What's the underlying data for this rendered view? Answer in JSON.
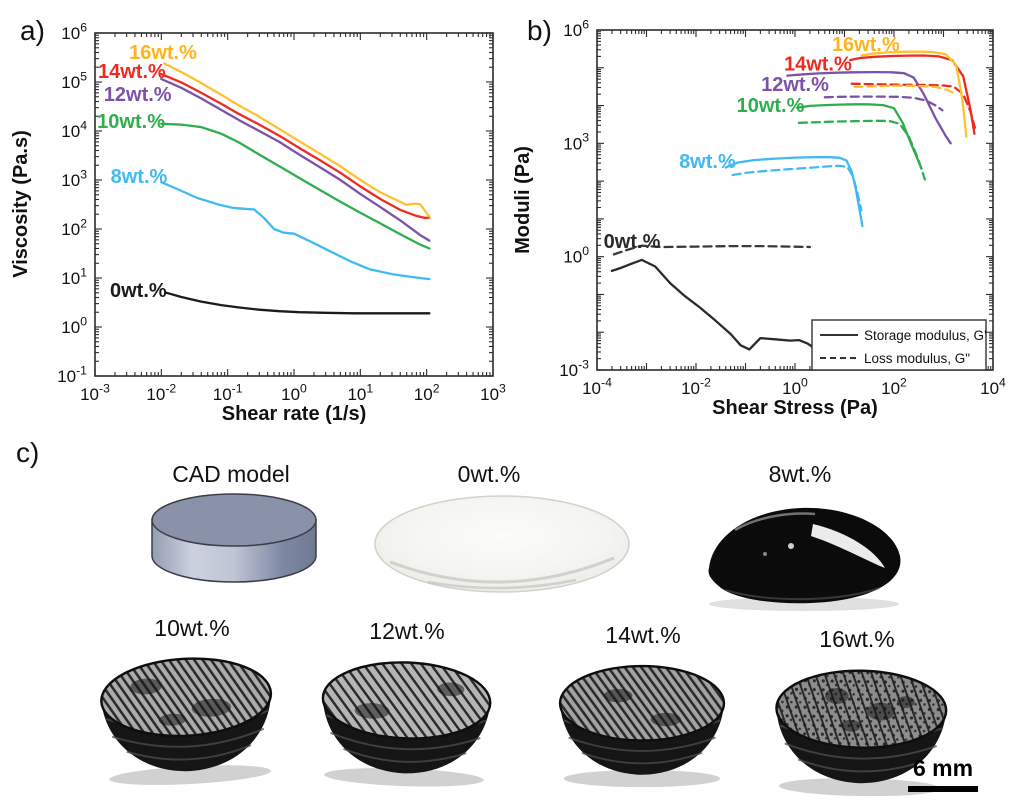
{
  "figure": {
    "panel_a_label": "a)",
    "panel_b_label": "b)",
    "panel_c_label": "c)"
  },
  "chart_data": [
    {
      "id": "a",
      "type": "line",
      "title": "",
      "xlabel": "Shear rate (1/s)",
      "ylabel": "Viscosity (Pa.s)",
      "x_scale": "log",
      "y_scale": "log",
      "xlim": [
        0.001,
        1000
      ],
      "ylim": [
        0.1,
        1000000
      ],
      "x_label_anchor": -3,
      "x_label_step": 1,
      "y_label_anchor": -1,
      "y_label_step": 1,
      "grid": false,
      "series": [
        {
          "name": "0wt.%",
          "color": "#1b1b1b",
          "dash": false,
          "x": [
            0.012,
            0.02,
            0.04,
            0.08,
            0.15,
            0.3,
            0.6,
            1.2,
            3,
            8,
            20,
            50,
            110
          ],
          "y": [
            5.0,
            4.1,
            3.3,
            2.8,
            2.5,
            2.25,
            2.1,
            2.0,
            1.95,
            1.9,
            1.9,
            1.9,
            1.9
          ]
        },
        {
          "name": "8wt.%",
          "color": "#41B9F2",
          "dash": false,
          "x": [
            0.01,
            0.018,
            0.035,
            0.07,
            0.12,
            0.18,
            0.25,
            0.35,
            0.5,
            0.7,
            1,
            1.8,
            3.5,
            7,
            14,
            30,
            60,
            110
          ],
          "y": [
            900,
            640,
            430,
            320,
            270,
            258,
            250,
            170,
            100,
            84,
            80,
            55,
            35,
            22,
            15,
            12,
            10.5,
            9.5
          ]
        },
        {
          "name": "10wt.%",
          "color": "#2FAE4F",
          "dash": false,
          "x": [
            0.01,
            0.02,
            0.04,
            0.08,
            0.15,
            0.3,
            0.6,
            1.2,
            2.5,
            5,
            10,
            20,
            40,
            80,
            110
          ],
          "y": [
            14000,
            13500,
            12000,
            8800,
            5800,
            3300,
            1900,
            1100,
            620,
            360,
            215,
            130,
            78,
            48,
            40
          ]
        },
        {
          "name": "12wt.%",
          "color": "#7B52A8",
          "dash": false,
          "x": [
            0.01,
            0.02,
            0.04,
            0.08,
            0.15,
            0.3,
            0.6,
            1.2,
            2.5,
            5,
            10,
            20,
            40,
            80,
            110
          ],
          "y": [
            115000,
            76000,
            46000,
            27000,
            16500,
            10000,
            6000,
            3300,
            1800,
            1000,
            520,
            280,
            150,
            75,
            58
          ]
        },
        {
          "name": "14wt.%",
          "color": "#EE2A21",
          "dash": false,
          "x": [
            0.01,
            0.02,
            0.04,
            0.08,
            0.15,
            0.3,
            0.6,
            1.2,
            2.5,
            5,
            10,
            20,
            40,
            70,
            95,
            110
          ],
          "y": [
            145000,
            98000,
            60000,
            36000,
            22000,
            13500,
            8000,
            4500,
            2500,
            1400,
            740,
            410,
            245,
            185,
            168,
            172
          ]
        },
        {
          "name": "16wt.%",
          "color": "#FFC22E",
          "dash": false,
          "x": [
            0.011,
            0.02,
            0.04,
            0.08,
            0.15,
            0.3,
            0.6,
            1.2,
            2.5,
            5,
            10,
            20,
            35,
            50,
            65,
            80,
            95,
            110
          ],
          "y": [
            240000,
            160000,
            95000,
            55000,
            33000,
            19500,
            11000,
            6200,
            3400,
            1900,
            1000,
            560,
            390,
            310,
            330,
            320,
            230,
            180
          ]
        }
      ],
      "annotations": [
        {
          "text": "16wt.%",
          "color": "#FFB41E",
          "x": 0.0106,
          "y": 410000
        },
        {
          "text": "14wt.%",
          "color": "#EE2A21",
          "x": 0.0036,
          "y": 167000
        },
        {
          "text": "12wt.%",
          "color": "#7B52A8",
          "x": 0.0044,
          "y": 57000
        },
        {
          "text": "10wt.%",
          "color": "#2FAE4F",
          "x": 0.0035,
          "y": 16000
        },
        {
          "text": "8wt.%",
          "color": "#41B9F2",
          "x": 0.0046,
          "y": 1200
        },
        {
          "text": "0wt.%",
          "color": "#1b1b1b",
          "x": 0.0045,
          "y": 5.7
        }
      ]
    },
    {
      "id": "b",
      "type": "line",
      "title": "",
      "xlabel": "Shear Stress (Pa)",
      "ylabel": "Moduli (Pa)",
      "x_scale": "log",
      "y_scale": "log",
      "xlim": [
        0.0001,
        10000
      ],
      "ylim": [
        0.001,
        1000000
      ],
      "x_label_anchor": -4,
      "x_label_step": 2,
      "y_label_anchor": -3,
      "y_label_step": 3,
      "grid": false,
      "legend_items": [
        {
          "label": "Storage modulus, G'",
          "dash": false
        },
        {
          "label": "Loss modulus, G\"",
          "dash": true
        }
      ],
      "series": [
        {
          "name": "0wt.% G\"",
          "color": "#3a3a3a",
          "dash": true,
          "x": [
            0.00022,
            0.0004,
            0.0008,
            0.002,
            0.01,
            0.05,
            0.2,
            0.8,
            2
          ],
          "y": [
            1.15,
            1.5,
            1.95,
            1.8,
            1.85,
            1.9,
            1.9,
            1.85,
            1.8
          ]
        },
        {
          "name": "0wt.% G'",
          "color": "#2a2a2a",
          "dash": false,
          "x": [
            0.0002,
            0.0003,
            0.0005,
            0.0008,
            0.0015,
            0.003,
            0.006,
            0.012,
            0.025,
            0.05,
            0.08,
            0.12,
            0.2,
            0.4,
            0.8,
            1.2,
            1.8,
            2.2
          ],
          "y": [
            0.42,
            0.5,
            0.65,
            0.82,
            0.55,
            0.2,
            0.09,
            0.045,
            0.02,
            0.009,
            0.0045,
            0.0035,
            0.007,
            0.0065,
            0.006,
            0.0062,
            0.005,
            0.0042
          ]
        },
        {
          "name": "8wt.% G\"",
          "color": "#41B9F2",
          "dash": true,
          "x": [
            0.055,
            0.1,
            0.25,
            0.7,
            2,
            4.5,
            8,
            11.5,
            15,
            18.5,
            22
          ],
          "y": [
            145,
            165,
            185,
            205,
            225,
            245,
            255,
            235,
            130,
            45,
            17
          ]
        },
        {
          "name": "8wt.% G'",
          "color": "#41B9F2",
          "dash": false,
          "x": [
            0.04,
            0.07,
            0.15,
            0.4,
            1,
            2.5,
            5,
            8,
            11,
            14,
            17,
            20,
            23
          ],
          "y": [
            230,
            310,
            360,
            395,
            420,
            430,
            430,
            415,
            350,
            180,
            60,
            18,
            6.5
          ]
        },
        {
          "name": "10wt.% G\"",
          "color": "#2FAE4F",
          "dash": true,
          "x": [
            1.2,
            2.5,
            6,
            15,
            40,
            80,
            130,
            200,
            300,
            420
          ],
          "y": [
            3500,
            3600,
            3750,
            3850,
            3950,
            3900,
            3300,
            1500,
            420,
            110
          ]
        },
        {
          "name": "10wt.% G'",
          "color": "#2FAE4F",
          "dash": false,
          "x": [
            1.1,
            2,
            4,
            8,
            15,
            30,
            60,
            100,
            150,
            220,
            300,
            360
          ],
          "y": [
            8800,
            9800,
            10300,
            10600,
            10800,
            10800,
            10300,
            8500,
            3500,
            1000,
            380,
            215
          ]
        },
        {
          "name": "12wt.% G\"",
          "color": "#7B52A8",
          "dash": true,
          "x": [
            4,
            8,
            20,
            50,
            120,
            250,
            450,
            700,
            950
          ],
          "y": [
            16500,
            17000,
            17300,
            17300,
            17000,
            16000,
            13500,
            10000,
            7500
          ]
        },
        {
          "name": "12wt.% G'",
          "color": "#7B52A8",
          "dash": false,
          "x": [
            0.7,
            1.5,
            3,
            7,
            15,
            40,
            90,
            160,
            250,
            400,
            700,
            1100,
            1400
          ],
          "y": [
            62000,
            67000,
            71000,
            74000,
            76000,
            77000,
            76000,
            72000,
            55000,
            20000,
            4500,
            1600,
            1000
          ]
        },
        {
          "name": "14wt.% G\"",
          "color": "#EE2A21",
          "dash": true,
          "x": [
            14,
            30,
            80,
            200,
            500,
            1000,
            1600,
            2500,
            3500,
            4300
          ],
          "y": [
            38000,
            37000,
            36000,
            35500,
            35000,
            34000,
            32000,
            20000,
            7000,
            2600
          ]
        },
        {
          "name": "16wt.% G\"",
          "color": "#FFC22E",
          "dash": true,
          "x": [
            16,
            30,
            70,
            150,
            350,
            700,
            1200,
            1800
          ],
          "y": [
            31000,
            32000,
            33000,
            33500,
            33000,
            31000,
            26000,
            20000
          ]
        },
        {
          "name": "14wt.% G'",
          "color": "#EE2A21",
          "dash": false,
          "x": [
            13,
            20,
            40,
            90,
            200,
            400,
            800,
            1500,
            2500,
            3500,
            4200
          ],
          "y": [
            160000,
            180000,
            195000,
            205000,
            210000,
            211000,
            200000,
            160000,
            60000,
            8000,
            1800
          ]
        },
        {
          "name": "16wt.% G'",
          "color": "#FFC22E",
          "dash": false,
          "x": [
            22,
            35,
            70,
            150,
            300,
            600,
            1100,
            1800,
            2400,
            2900
          ],
          "y": [
            210000,
            235000,
            255000,
            265000,
            268000,
            262000,
            230000,
            120000,
            15000,
            1500
          ]
        }
      ],
      "annotations": [
        {
          "text": "16wt.%",
          "color": "#FFB41E",
          "x": 27,
          "y": 420000
        },
        {
          "text": "14wt.%",
          "color": "#EE2A21",
          "x": 2.9,
          "y": 130000
        },
        {
          "text": "12wt.%",
          "color": "#7B52A8",
          "x": 1.0,
          "y": 37000
        },
        {
          "text": "10wt.%",
          "color": "#2FAE4F",
          "x": 0.32,
          "y": 10500
        },
        {
          "text": "8wt.%",
          "color": "#41B9F2",
          "x": 0.017,
          "y": 340
        },
        {
          "text": "0wt.%",
          "color": "#2a2a2a",
          "x": 0.00051,
          "y": 2.6
        }
      ]
    }
  ],
  "panel_c": {
    "items": [
      {
        "id": "cad",
        "label": "CAD model",
        "type": "cad-render"
      },
      {
        "id": "w0",
        "label": "0wt.%",
        "type": "photo-transparent-disc"
      },
      {
        "id": "w8",
        "label": "8wt.%",
        "type": "photo-gel-blob"
      },
      {
        "id": "w10",
        "label": "10wt.%",
        "type": "photo-printed-disc"
      },
      {
        "id": "w12",
        "label": "12wt.%",
        "type": "photo-printed-disc"
      },
      {
        "id": "w14",
        "label": "14wt.%",
        "type": "photo-printed-disc"
      },
      {
        "id": "w16",
        "label": "16wt.%",
        "type": "photo-printed-disc"
      }
    ],
    "scale_bar_label": "6 mm",
    "colors": {
      "cad_top": "#8a92a9",
      "cad_side_mid": "#ccd1df",
      "ink_black": "#0b0b0b"
    }
  }
}
